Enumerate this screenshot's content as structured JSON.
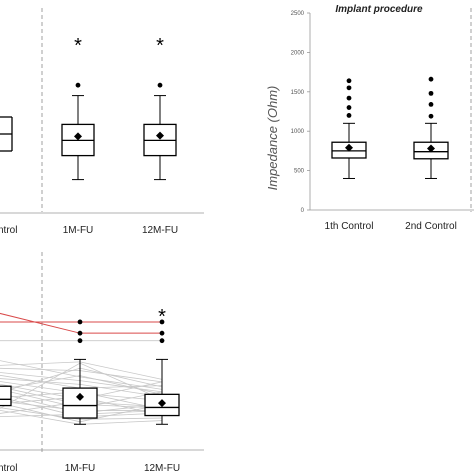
{
  "chart_data": [
    {
      "type": "box",
      "panel": "top-left (cropped)",
      "categories": [
        "Control",
        "1M-FU",
        "12M-FU"
      ],
      "boxes": [
        {
          "category": "Control",
          "q1": null,
          "median": null,
          "q3": null,
          "mean": null,
          "whisker_low": null,
          "whisker_high": null
        },
        {
          "category": "1M-FU",
          "q1": 680,
          "median": 870,
          "q3": 1070,
          "mean": 920,
          "whisker_low": 380,
          "whisker_high": 1430,
          "outliers": [
            1560
          ],
          "significant": true
        },
        {
          "category": "12M-FU",
          "q1": 680,
          "median": 870,
          "q3": 1070,
          "mean": 930,
          "whisker_low": 380,
          "whisker_high": 1430,
          "outliers": [
            1560
          ],
          "significant": true
        }
      ],
      "ylim": [
        0,
        2500
      ],
      "grid": false,
      "significance_marker": "*",
      "labels": {
        "control": "ntrol",
        "fu1": "1M-FU",
        "fu12": "12M-FU",
        "star1": "*",
        "star2": "*"
      }
    },
    {
      "type": "box",
      "panel": "top-right",
      "title": "Implant procedure",
      "ylabel": "Impedance (Ohm)",
      "categories": [
        "1th Control",
        "2nd Control"
      ],
      "yticks": [
        "0",
        "500",
        "1000",
        "1500",
        "2000",
        "2500"
      ],
      "ylim": [
        0,
        2500
      ],
      "grid": false,
      "boxes": [
        {
          "category": "1th Control",
          "q1": 660,
          "median": 750,
          "q3": 860,
          "mean": 790,
          "whisker_low": 400,
          "whisker_high": 1100,
          "outliers": [
            1200,
            1300,
            1420,
            1550,
            1640
          ]
        },
        {
          "category": "2nd Control",
          "q1": 650,
          "median": 740,
          "q3": 860,
          "mean": 780,
          "whisker_low": 400,
          "whisker_high": 1100,
          "outliers": [
            1190,
            1340,
            1480,
            1660
          ]
        }
      ]
    },
    {
      "type": "box",
      "panel": "bottom-left (cropped)",
      "categories": [
        "Control",
        "1M-FU",
        "12M-FU"
      ],
      "boxes": [
        {
          "category": "Control",
          "q1": 680,
          "median": 780,
          "q3": 990,
          "mean": 860,
          "whisker_low": 480,
          "whisker_high": 1200
        },
        {
          "category": "1M-FU",
          "q1": 480,
          "median": 680,
          "q3": 960,
          "mean": 820,
          "whisker_low": 380,
          "whisker_high": 1420,
          "outliers": [
            1720,
            1840,
            2020
          ]
        },
        {
          "category": "12M-FU",
          "q1": 520,
          "median": 650,
          "q3": 860,
          "mean": 720,
          "whisker_low": 380,
          "whisker_high": 1420,
          "outliers": [
            1720,
            1840,
            2020
          ],
          "significant": true
        }
      ],
      "ylim": [
        0,
        2500
      ],
      "grid": false,
      "significance_marker": "*",
      "labels": {
        "control": "ntrol",
        "fu1": "1M-FU",
        "fu12": "12M-FU",
        "star": "*"
      },
      "paired_lines": {
        "color_gray": "#c8c8c8",
        "color_red": "#d94a4a",
        "red": [
          [
            2020,
            2020,
            2020
          ],
          [
            2180,
            1840,
            1840
          ]
        ],
        "gray": [
          [
            1720,
            1720,
            1720
          ],
          [
            1420,
            1140,
            940
          ],
          [
            1320,
            1380,
            1100
          ],
          [
            1280,
            1240,
            1060
          ],
          [
            1220,
            1080,
            900
          ],
          [
            1180,
            960,
            1000
          ],
          [
            1120,
            1020,
            820
          ],
          [
            1080,
            880,
            760
          ],
          [
            1040,
            780,
            1060
          ],
          [
            1000,
            700,
            640
          ],
          [
            960,
            640,
            900
          ],
          [
            920,
            1160,
            860
          ],
          [
            900,
            560,
            700
          ],
          [
            860,
            1280,
            980
          ],
          [
            840,
            500,
            560
          ],
          [
            800,
            900,
            620
          ],
          [
            760,
            600,
            600
          ],
          [
            740,
            420,
            700
          ],
          [
            700,
            820,
            520
          ],
          [
            660,
            460,
            480
          ],
          [
            620,
            380,
            440
          ],
          [
            580,
            1360,
            780
          ],
          [
            540,
            740,
            660
          ],
          [
            500,
            540,
            600
          ]
        ]
      }
    }
  ],
  "colors": {
    "ink": "#000000",
    "axis": "#999999",
    "separator": "#8a8a8a",
    "red_line": "#d94a4a",
    "gray_line": "#c8c8c8"
  }
}
